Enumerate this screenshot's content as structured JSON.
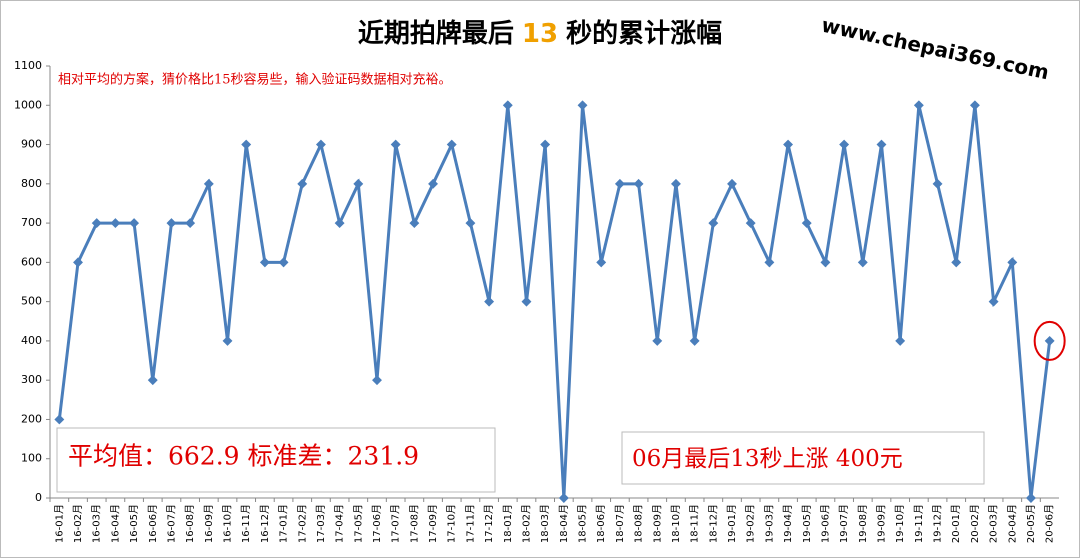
{
  "chart_data": {
    "type": "line",
    "title_parts": [
      "近期拍牌最后",
      "13",
      "秒的累计涨幅"
    ],
    "watermark": "www.chepai369.com",
    "note": "相对平均的方案，猜价格比15秒容易些，输入验证码数据相对充裕。",
    "stats_label": "平均值：662.9 标准差：231.9",
    "callout": "06月最后13秒上涨 400元",
    "categories": [
      "16-01月",
      "16-02月",
      "16-03月",
      "16-04月",
      "16-05月",
      "16-06月",
      "16-07月",
      "16-08月",
      "16-09月",
      "16-10月",
      "16-11月",
      "16-12月",
      "17-01月",
      "17-02月",
      "17-03月",
      "17-04月",
      "17-05月",
      "17-06月",
      "17-07月",
      "17-08月",
      "17-09月",
      "17-10月",
      "17-11月",
      "17-12月",
      "18-01月",
      "18-02月",
      "18-03月",
      "18-04月",
      "18-05月",
      "18-06月",
      "18-07月",
      "18-08月",
      "18-09月",
      "18-10月",
      "18-11月",
      "18-12月",
      "19-01月",
      "19-02月",
      "19-03月",
      "19-04月",
      "19-05月",
      "19-06月",
      "19-07月",
      "19-08月",
      "19-09月",
      "19-10月",
      "19-11月",
      "19-12月",
      "20-01月",
      "20-02月",
      "20-03月",
      "20-04月",
      "20-05月",
      "20-06月"
    ],
    "values": [
      200,
      600,
      700,
      700,
      700,
      300,
      700,
      700,
      800,
      400,
      900,
      600,
      600,
      800,
      900,
      700,
      800,
      300,
      900,
      700,
      800,
      900,
      700,
      500,
      1000,
      500,
      900,
      0,
      1000,
      600,
      800,
      800,
      400,
      800,
      400,
      700,
      800,
      700,
      600,
      900,
      700,
      600,
      900,
      600,
      900,
      400,
      1000,
      800,
      600,
      1000,
      500,
      600,
      0,
      400
    ],
    "color": "#4a7ebb",
    "ylim": [
      0,
      1100
    ],
    "yticks": [
      0,
      100,
      200,
      300,
      400,
      500,
      600,
      700,
      800,
      900,
      1000,
      1100
    ],
    "grid": false
  }
}
